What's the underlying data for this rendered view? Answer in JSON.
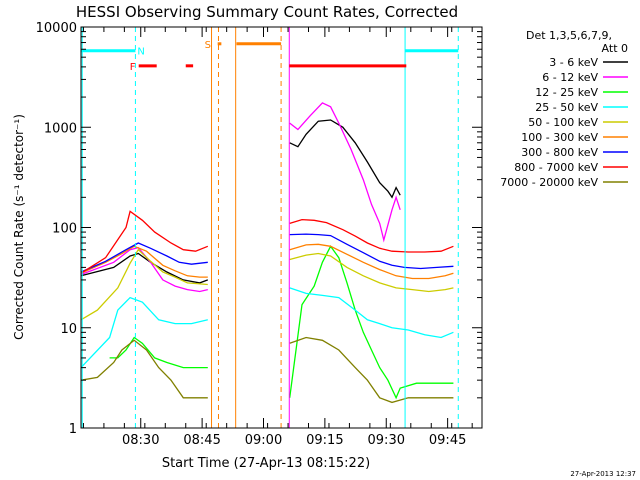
{
  "chart_data": {
    "type": "line",
    "title": "HESSI Observing Summary Count Rates, Corrected",
    "xlabel": "Start Time (27-Apr-13 08:15:22)",
    "ylabel": "Corrected Count Rate (s⁻¹ detector⁻¹)",
    "x_unit": "minutes after 08:15:22",
    "xlim": [
      0,
      98
    ],
    "ylim": [
      1,
      10000
    ],
    "yscale": "log",
    "x_ticks": [
      {
        "x": 14.6,
        "label": "08:30"
      },
      {
        "x": 29.6,
        "label": "08:45"
      },
      {
        "x": 44.6,
        "label": "09:00"
      },
      {
        "x": 59.6,
        "label": "09:15"
      },
      {
        "x": 74.6,
        "label": "09:30"
      },
      {
        "x": 89.6,
        "label": "09:45"
      }
    ],
    "y_ticks": [
      {
        "y": 1,
        "label": "1"
      },
      {
        "y": 10,
        "label": "10"
      },
      {
        "y": 100,
        "label": "100"
      },
      {
        "y": 1000,
        "label": "1000"
      },
      {
        "y": 10000,
        "label": "10000"
      }
    ],
    "legend": {
      "header_line1": "Det 1,3,5,6,7,9,",
      "header_line2": "Att 0",
      "placement": "right-outside"
    },
    "series": [
      {
        "name": "3 - 6 keV",
        "color": "#000000",
        "segments": [
          [
            [
              0,
              33
            ],
            [
              8,
              40
            ],
            [
              12,
              52
            ],
            [
              14,
              55
            ],
            [
              17,
              45
            ],
            [
              21,
              36
            ],
            [
              25,
              30
            ],
            [
              29,
              28
            ],
            [
              31,
              30
            ]
          ],
          [
            [
              51,
              700
            ],
            [
              53,
              640
            ],
            [
              55,
              850
            ],
            [
              58,
              1150
            ],
            [
              61,
              1180
            ],
            [
              64,
              1000
            ],
            [
              67,
              700
            ],
            [
              70,
              450
            ],
            [
              73,
              280
            ],
            [
              75,
              230
            ],
            [
              76,
              200
            ],
            [
              77,
              250
            ],
            [
              78,
              210
            ]
          ]
        ]
      },
      {
        "name": "6 - 12 keV",
        "color": "#ff00ff",
        "segments": [
          [
            [
              0,
              34
            ],
            [
              8,
              45
            ],
            [
              12,
              60
            ],
            [
              14,
              63
            ],
            [
              17,
              45
            ],
            [
              20,
              30
            ],
            [
              23,
              26
            ],
            [
              26,
              24
            ],
            [
              29,
              23
            ],
            [
              31,
              24
            ]
          ],
          [
            [
              51,
              1100
            ],
            [
              53,
              950
            ],
            [
              56,
              1300
            ],
            [
              59,
              1750
            ],
            [
              61,
              1600
            ],
            [
              63,
              1100
            ],
            [
              66,
              600
            ],
            [
              69,
              300
            ],
            [
              71,
              170
            ],
            [
              73,
              110
            ],
            [
              74,
              75
            ],
            [
              76,
              150
            ],
            [
              77,
              200
            ],
            [
              78,
              150
            ]
          ]
        ]
      },
      {
        "name": "12 - 25 keV",
        "color": "#00ff00",
        "segments": [
          [
            [
              7,
              5
            ],
            [
              9,
              5
            ],
            [
              11,
              6
            ],
            [
              13,
              8
            ],
            [
              15,
              7
            ],
            [
              18,
              5
            ],
            [
              21,
              4.5
            ],
            [
              25,
              4
            ],
            [
              29,
              4
            ],
            [
              31,
              4
            ]
          ],
          [
            [
              51,
              2
            ],
            [
              54,
              17
            ],
            [
              57,
              26
            ],
            [
              59,
              45
            ],
            [
              61,
              65
            ],
            [
              63,
              50
            ],
            [
              65,
              28
            ],
            [
              67,
              15
            ],
            [
              69,
              9
            ],
            [
              71,
              6
            ],
            [
              73,
              4
            ],
            [
              75,
              3
            ],
            [
              77,
              2
            ],
            [
              78,
              2.5
            ],
            [
              82,
              2.8
            ],
            [
              86,
              2.8
            ],
            [
              91,
              2.8
            ]
          ]
        ]
      },
      {
        "name": "25 - 50 keV",
        "color": "#00ffff",
        "segments": [
          [
            [
              0,
              4
            ],
            [
              7,
              8
            ],
            [
              9,
              15
            ],
            [
              12,
              20
            ],
            [
              15,
              18
            ],
            [
              19,
              12
            ],
            [
              23,
              11
            ],
            [
              27,
              11
            ],
            [
              31,
              12
            ]
          ],
          [
            [
              51,
              25
            ],
            [
              55,
              22
            ],
            [
              59,
              21
            ],
            [
              63,
              20
            ],
            [
              67,
              15
            ],
            [
              70,
              12
            ],
            [
              73,
              11
            ],
            [
              76,
              10
            ],
            [
              80,
              9.5
            ],
            [
              84,
              8.5
            ],
            [
              88,
              8
            ],
            [
              91,
              9
            ]
          ]
        ]
      },
      {
        "name": "50 - 100 keV",
        "color": "#cccc00",
        "segments": [
          [
            [
              0,
              12
            ],
            [
              4,
              15
            ],
            [
              9,
              25
            ],
            [
              12,
              44
            ],
            [
              14,
              60
            ],
            [
              17,
              46
            ],
            [
              20,
              36
            ],
            [
              23,
              32
            ],
            [
              26,
              28
            ],
            [
              31,
              27
            ]
          ],
          [
            [
              51,
              48
            ],
            [
              55,
              53
            ],
            [
              58,
              55
            ],
            [
              61,
              52
            ],
            [
              65,
              40
            ],
            [
              69,
              33
            ],
            [
              73,
              28
            ],
            [
              77,
              25
            ],
            [
              81,
              24
            ],
            [
              85,
              23
            ],
            [
              89,
              24
            ],
            [
              91,
              25
            ]
          ]
        ]
      },
      {
        "name": "100 - 300 keV",
        "color": "#ff8000",
        "segments": [
          [
            [
              0,
              35
            ],
            [
              6,
              45
            ],
            [
              10,
              55
            ],
            [
              13,
              65
            ],
            [
              16,
              58
            ],
            [
              20,
              42
            ],
            [
              23,
              37
            ],
            [
              26,
              33
            ],
            [
              29,
              32
            ],
            [
              31,
              32
            ]
          ],
          [
            [
              51,
              60
            ],
            [
              55,
              67
            ],
            [
              58,
              68
            ],
            [
              61,
              65
            ],
            [
              65,
              54
            ],
            [
              69,
              45
            ],
            [
              73,
              38
            ],
            [
              77,
              33
            ],
            [
              81,
              31
            ],
            [
              85,
              31
            ],
            [
              89,
              33
            ],
            [
              91,
              35
            ]
          ]
        ]
      },
      {
        "name": "300 - 800 keV",
        "color": "#0000ff",
        "segments": [
          [
            [
              0,
              36
            ],
            [
              6,
              46
            ],
            [
              11,
              60
            ],
            [
              14,
              70
            ],
            [
              17,
              62
            ],
            [
              21,
              52
            ],
            [
              24,
              45
            ],
            [
              27,
              43
            ],
            [
              31,
              45
            ]
          ],
          [
            [
              51,
              85
            ],
            [
              55,
              86
            ],
            [
              58,
              85
            ],
            [
              61,
              83
            ],
            [
              65,
              68
            ],
            [
              69,
              56
            ],
            [
              73,
              46
            ],
            [
              76,
              42
            ],
            [
              79,
              40
            ],
            [
              83,
              39
            ],
            [
              87,
              40
            ],
            [
              91,
              41
            ]
          ]
        ]
      },
      {
        "name": "800 - 7000 keV",
        "color": "#ff0000",
        "segments": [
          [
            [
              0,
              35
            ],
            [
              6,
              50
            ],
            [
              11,
              100
            ],
            [
              12,
              145
            ],
            [
              15,
              118
            ],
            [
              18,
              90
            ],
            [
              22,
              70
            ],
            [
              25,
              60
            ],
            [
              28,
              58
            ],
            [
              31,
              65
            ]
          ],
          [
            [
              51,
              110
            ],
            [
              54,
              120
            ],
            [
              57,
              118
            ],
            [
              60,
              112
            ],
            [
              64,
              95
            ],
            [
              67,
              82
            ],
            [
              70,
              70
            ],
            [
              73,
              62
            ],
            [
              76,
              58
            ],
            [
              80,
              57
            ],
            [
              84,
              57
            ],
            [
              88,
              58
            ],
            [
              91,
              65
            ]
          ]
        ]
      },
      {
        "name": "7000 - 20000 keV",
        "color": "#808000",
        "segments": [
          [
            [
              0,
              3
            ],
            [
              4,
              3.2
            ],
            [
              8,
              4.5
            ],
            [
              10,
              6
            ],
            [
              13,
              7.5
            ],
            [
              16,
              6
            ],
            [
              19,
              4
            ],
            [
              22,
              3
            ],
            [
              25,
              2
            ],
            [
              31,
              2
            ]
          ],
          [
            [
              51,
              7
            ],
            [
              55,
              8
            ],
            [
              59,
              7.5
            ],
            [
              63,
              6
            ],
            [
              67,
              4
            ],
            [
              70,
              3
            ],
            [
              73,
              2
            ],
            [
              76,
              1.8
            ],
            [
              80,
              2
            ],
            [
              85,
              2
            ],
            [
              88,
              2
            ],
            [
              91,
              2
            ]
          ]
        ]
      }
    ],
    "overlays": {
      "top_bars": [
        {
          "label": "N",
          "color": "#00ffff",
          "y": 5800,
          "x1": 0,
          "x2": 13.3
        },
        {
          "label": "",
          "color": "#00ffff",
          "y": 5800,
          "x1": 79.2,
          "x2": 92.2
        },
        {
          "label": "F",
          "color": "#ff0000",
          "y": 4100,
          "x1": 14.1,
          "x2": 18.5
        },
        {
          "label": "",
          "color": "#ff0000",
          "y": 4100,
          "x1": 25.6,
          "x2": 27.4
        },
        {
          "label": "",
          "color": "#ff0000",
          "y": 4100,
          "x1": 50.9,
          "x2": 79.5
        },
        {
          "label": "S",
          "color": "#ff8000",
          "y": 6800,
          "x1": 33.4,
          "x2": 34.3
        },
        {
          "label": "",
          "color": "#ff8000",
          "y": 6800,
          "x1": 38.0,
          "x2": 48.9
        }
      ],
      "vertical_lines": [
        {
          "x": 0.3,
          "color": "#00ffff",
          "style": "solid"
        },
        {
          "x": 13.3,
          "color": "#00ffff",
          "style": "dashed"
        },
        {
          "x": 31.9,
          "color": "#ff8000",
          "style": "solid"
        },
        {
          "x": 33.6,
          "color": "#ff8000",
          "style": "dashed"
        },
        {
          "x": 37.8,
          "color": "#ff8000",
          "style": "solid"
        },
        {
          "x": 48.9,
          "color": "#ff8000",
          "style": "dashed"
        },
        {
          "x": 50.9,
          "color": "#ff00ff",
          "style": "solid"
        },
        {
          "x": 79.2,
          "color": "#00ffff",
          "style": "solid"
        },
        {
          "x": 92.2,
          "color": "#00ffff",
          "style": "dashed"
        }
      ]
    }
  },
  "footer": {
    "timestamp": "27-Apr-2013 12:37"
  }
}
